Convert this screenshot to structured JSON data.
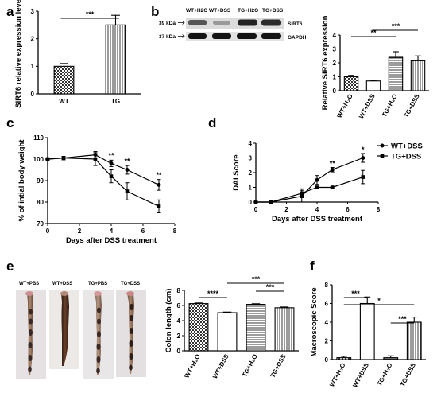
{
  "panel_labels": [
    "a",
    "b",
    "c",
    "d",
    "e",
    "f"
  ],
  "colors": {
    "axis": "#000000",
    "wt_fill": "#ffffff",
    "tg_fill": "#ffffff"
  },
  "blot": {
    "lanes": [
      "WT+H2O",
      "WT+DSS",
      "TG+H2O",
      "TG+DSS"
    ],
    "rows": [
      {
        "kda": "39 kDa",
        "protein": "SIRT6"
      },
      {
        "kda": "37 kDa",
        "protein": "GAPDH"
      }
    ]
  },
  "photos": {
    "labels": [
      "WT+PBS",
      "WT+DSS",
      "TG+PBS",
      "TG+DSS"
    ]
  },
  "chart_data": [
    {
      "panel": "a",
      "type": "bar",
      "categories": [
        "WT",
        "TG"
      ],
      "values": [
        1.0,
        2.5
      ],
      "errors": [
        0.1,
        0.35
      ],
      "ylabel": "SIRT6 relative expression level",
      "ylim": [
        0,
        3
      ],
      "yticks": [
        "0",
        "1",
        "2",
        "3"
      ],
      "significance": [
        {
          "from": 0,
          "to": 1,
          "label": "***"
        }
      ]
    },
    {
      "panel": "b",
      "type": "bar",
      "categories": [
        "WT+H₂O",
        "WT+DSS",
        "TG+H₂O",
        "TG+DSS"
      ],
      "values": [
        1.0,
        0.7,
        2.4,
        2.15
      ],
      "errors": [
        0.1,
        0.05,
        0.4,
        0.35
      ],
      "ylabel": "Relative SIRT6 expression",
      "ylim": [
        0,
        4
      ],
      "yticks": [
        "0",
        "1",
        "2",
        "3",
        "4"
      ],
      "significance": [
        {
          "from": 0,
          "to": 2,
          "label": "**"
        },
        {
          "from": 1,
          "to": 3,
          "label": "***"
        }
      ]
    },
    {
      "panel": "c",
      "type": "line",
      "xlabel": "Days after DSS treatment",
      "ylabel": "% of intial body weight",
      "xlim": [
        0,
        8
      ],
      "ylim": [
        70,
        110
      ],
      "xticks": [
        "0",
        "2",
        "4",
        "6",
        "8"
      ],
      "yticks": [
        "70",
        "80",
        "90",
        "100",
        "110"
      ],
      "series": [
        {
          "x": [
            0,
            1,
            3,
            4,
            5,
            7
          ],
          "y": [
            100,
            100.5,
            102,
            98,
            95,
            88
          ],
          "err": [
            0.5,
            0.8,
            1.5,
            1.5,
            2,
            2.5
          ],
          "marker": "circle"
        },
        {
          "x": [
            0,
            1,
            3,
            4,
            5,
            7
          ],
          "y": [
            100,
            100.5,
            100,
            92,
            85,
            78
          ],
          "err": [
            0.5,
            0.8,
            3,
            3,
            4,
            3
          ],
          "marker": "square"
        }
      ],
      "annotations": [
        {
          "x": 4,
          "y": 100.5,
          "label": "**"
        },
        {
          "x": 5,
          "y": 98,
          "label": "**"
        },
        {
          "x": 7,
          "y": 91.5,
          "label": "**"
        }
      ]
    },
    {
      "panel": "d",
      "type": "line",
      "xlabel": "Days after DSS treatment",
      "ylabel": "DAI Score",
      "xlim": [
        0,
        8
      ],
      "ylim": [
        0,
        4
      ],
      "xticks": [
        "0",
        "2",
        "4",
        "6",
        "8"
      ],
      "yticks": [
        "0",
        "1",
        "2",
        "3",
        "4"
      ],
      "legend": "top-right",
      "series": [
        {
          "name": "WT+DSS",
          "x": [
            0,
            1,
            3,
            4,
            5,
            7
          ],
          "y": [
            0,
            0,
            0.4,
            1.5,
            2.2,
            3.0
          ],
          "err": [
            0,
            0,
            0.4,
            0.3,
            0.15,
            0.3
          ],
          "marker": "circle"
        },
        {
          "name": "TG+DSS",
          "x": [
            0,
            1,
            3,
            4,
            5,
            7
          ],
          "y": [
            0,
            0,
            0.6,
            1.0,
            1.0,
            1.7
          ],
          "err": [
            0,
            0,
            0.3,
            0.05,
            0.05,
            0.45
          ],
          "marker": "square"
        }
      ],
      "annotations": [
        {
          "x": 5,
          "y": 2.45,
          "label": "**"
        },
        {
          "x": 7,
          "y": 3.4,
          "label": "*"
        }
      ]
    },
    {
      "panel": "e",
      "type": "bar",
      "categories": [
        "WT+H₂O",
        "WT+DSS",
        "TG+H₂O",
        "TG+DSS"
      ],
      "values": [
        6.25,
        5.05,
        6.15,
        5.7
      ],
      "errors": [
        0.08,
        0.08,
        0.08,
        0.1
      ],
      "ylabel": "Colon length (cm)",
      "ylim": [
        0,
        8
      ],
      "yticks": [
        "0",
        "2",
        "4",
        "6",
        "8"
      ],
      "significance": [
        {
          "from": 0,
          "to": 1,
          "label": "****"
        },
        {
          "from": 1,
          "to": 3,
          "label": "***"
        },
        {
          "from": 2,
          "to": 3,
          "label": "***"
        }
      ]
    },
    {
      "panel": "f",
      "type": "bar",
      "categories": [
        "WT+H₂O",
        "WT+DSS",
        "TG+H₂O",
        "TG+DSS"
      ],
      "values": [
        0.2,
        6.0,
        0.2,
        4.0
      ],
      "errors": [
        0.15,
        0.7,
        0.2,
        0.55
      ],
      "ylabel": "Macroscopic Score",
      "ylim": [
        0,
        8
      ],
      "yticks": [
        "0",
        "2",
        "4",
        "6",
        "8"
      ],
      "significance": [
        {
          "from": 0,
          "to": 1,
          "label": "***"
        },
        {
          "from": 0,
          "to": 3,
          "label": "*"
        },
        {
          "from": 2,
          "to": 3,
          "label": "***"
        }
      ]
    }
  ]
}
